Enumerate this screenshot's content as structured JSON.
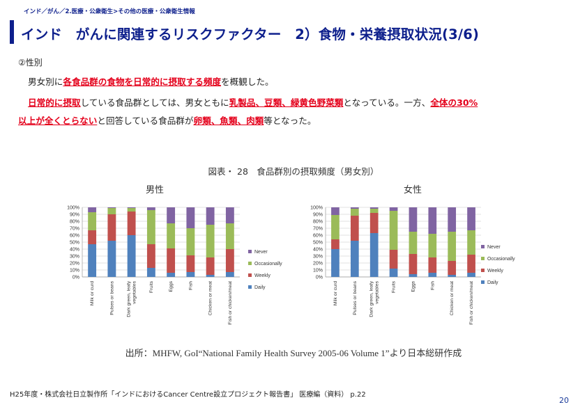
{
  "breadcrumb": "インド／がん／2.医療・公衆衛生>その他の医療・公衆衛生情報",
  "title": "インド　がんに関連するリスクファクター　2）食物・栄養摂取状況(3/6)",
  "section_label": "②性別",
  "paragraph1": {
    "pre": "男女別に",
    "highlight": "各食品群の食物を日常的に摂取する頻度",
    "post": "を概観した。"
  },
  "paragraph2": {
    "h1": "日常的に摂取",
    "t1": "している食品群としては、男女ともに",
    "h2": "乳製品、豆類、緑黄色野菜類",
    "t2": "となっている。一方、",
    "h3a": "全体の30%",
    "h3b": "以上が全くとらない",
    "t3": "と回答している食品群が",
    "h4": "卵類、魚類、肉類",
    "t4": "等となった。"
  },
  "figure_title": "図表・ 28　食品群別の摂取頻度（男女別）",
  "source": "出所：MHFW, GoI“National Family Health Survey 2005-06 Volume 1”より日本総研作成",
  "footer": "H25年度・株式会社日立製作所「インドにおけるCancer Centre設立プロジェクト報告書」 医療編（資料） p.22",
  "page_number": "20",
  "colors": {
    "title": "#0d1f8c",
    "highlight": "#e4001b",
    "Daily": "#4f81bd",
    "Weekly": "#c0504d",
    "Occasionally": "#9bbb59",
    "Never": "#8064a2"
  },
  "chart_data": [
    {
      "type": "bar",
      "stacked": true,
      "title": "男性",
      "categories": [
        "Milk or curd",
        "Pulses or beans",
        "Dark green, leafy vegetables",
        "Fruits",
        "Eggs",
        "Fish",
        "Chicken or meat",
        "Fish or chicken/meat"
      ],
      "series": [
        {
          "name": "Daily",
          "values": [
            47,
            52,
            60,
            13,
            6,
            7,
            3,
            7
          ]
        },
        {
          "name": "Weekly",
          "values": [
            20,
            38,
            34,
            34,
            35,
            24,
            25,
            33
          ]
        },
        {
          "name": "Occasionally",
          "values": [
            26,
            9,
            5,
            49,
            36,
            39,
            47,
            37
          ]
        },
        {
          "name": "Never",
          "values": [
            7,
            1,
            1,
            4,
            23,
            30,
            25,
            23
          ]
        }
      ],
      "ylim": [
        0,
        100
      ],
      "yticks": [
        "0%",
        "10%",
        "20%",
        "30%",
        "40%",
        "50%",
        "60%",
        "70%",
        "80%",
        "90%",
        "100%"
      ],
      "legend": "right",
      "grid": true
    },
    {
      "type": "bar",
      "stacked": true,
      "title": "女性",
      "categories": [
        "Milk or curd",
        "Pulses or beans",
        "Dark green, leafy vegetables",
        "Fruits",
        "Eggs",
        "Fish",
        "Chicken or meat",
        "Fish or chicken/meat"
      ],
      "series": [
        {
          "name": "Daily",
          "values": [
            40,
            52,
            63,
            12,
            4,
            6,
            3,
            6
          ]
        },
        {
          "name": "Weekly",
          "values": [
            14,
            36,
            29,
            27,
            29,
            22,
            20,
            26
          ]
        },
        {
          "name": "Occasionally",
          "values": [
            35,
            10,
            6,
            56,
            32,
            34,
            42,
            35
          ]
        },
        {
          "name": "Never",
          "values": [
            11,
            2,
            2,
            5,
            35,
            38,
            35,
            33
          ]
        }
      ],
      "ylim": [
        0,
        100
      ],
      "yticks": [
        "0%",
        "10%",
        "20%",
        "30%",
        "40%",
        "50%",
        "60%",
        "70%",
        "80%",
        "90%",
        "100%"
      ],
      "legend": "right",
      "grid": true
    }
  ]
}
